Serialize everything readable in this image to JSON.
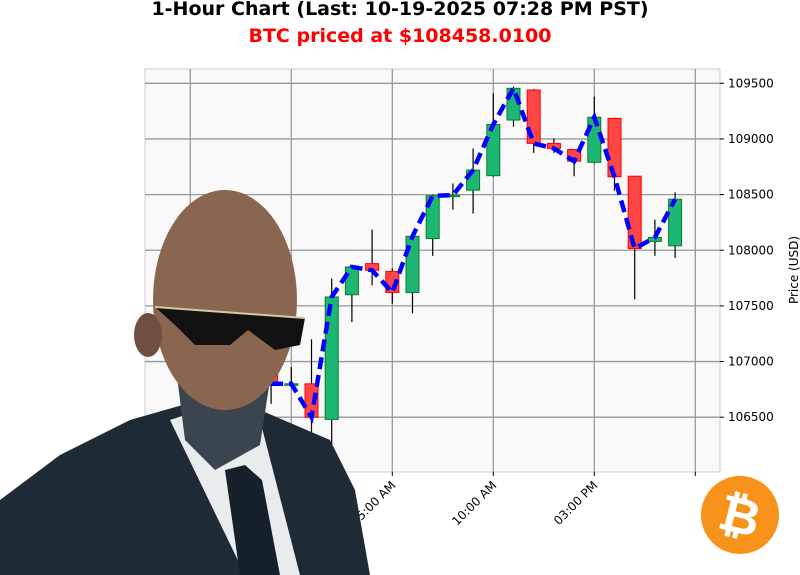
{
  "header": {
    "title": "1-Hour Chart (Last: 10-19-2025 07:28 PM PST)",
    "subtitle": "BTC priced at $108458.0100",
    "subtitle_color": "#ff0000"
  },
  "chart_data": {
    "type": "candlestick",
    "title": "1-Hour Chart (Last: 10-19-2025 07:28 PM PST)",
    "xlabel": "",
    "ylabel": "Price (USD)",
    "ylim": [
      106000,
      109650
    ],
    "xlim_hours": [
      -7.3,
      21.2
    ],
    "grid": true,
    "y_ticks": [
      "106500",
      "107000",
      "107500",
      "108000",
      "108500",
      "109000",
      "109500"
    ],
    "x_ticks": [
      {
        "hour": 5,
        "label": "05:00 AM"
      },
      {
        "hour": 10,
        "label": "10:00 AM"
      },
      {
        "hour": 15,
        "label": "03:00 PM"
      },
      {
        "hour": 20,
        "label": ""
      }
    ],
    "colors": {
      "up": "#1cb873",
      "up_edge": "#0b7a2a",
      "down": "#ff4646",
      "down_edge": "#ff0000",
      "close_line": "#0000ff"
    },
    "candles": [
      {
        "hour": -1,
        "open": 106900,
        "close": 106800,
        "high": 106950,
        "low": 106620
      },
      {
        "hour": 0,
        "open": 106790,
        "close": 106800,
        "high": 106950,
        "low": 106780
      },
      {
        "hour": 1,
        "open": 106800,
        "close": 106500,
        "high": 107200,
        "low": 106320
      },
      {
        "hour": 2,
        "open": 106480,
        "close": 107580,
        "high": 107745,
        "low": 106170
      },
      {
        "hour": 3,
        "open": 107600,
        "close": 107850,
        "high": 107860,
        "low": 107355
      },
      {
        "hour": 4,
        "open": 107880,
        "close": 107820,
        "high": 108185,
        "low": 107685
      },
      {
        "hour": 5,
        "open": 107810,
        "close": 107620,
        "high": 107835,
        "low": 107520
      },
      {
        "hour": 6,
        "open": 107620,
        "close": 108125,
        "high": 108140,
        "low": 107435
      },
      {
        "hour": 7,
        "open": 108105,
        "close": 108490,
        "high": 108500,
        "low": 107950
      },
      {
        "hour": 8,
        "open": 108490,
        "close": 108495,
        "high": 108600,
        "low": 108365
      },
      {
        "hour": 9,
        "open": 108540,
        "close": 108720,
        "high": 108915,
        "low": 108330
      },
      {
        "hour": 10,
        "open": 108670,
        "close": 109130,
        "high": 109410,
        "low": 108660
      },
      {
        "hour": 11,
        "open": 109170,
        "close": 109455,
        "high": 109470,
        "low": 109110
      },
      {
        "hour": 12,
        "open": 109440,
        "close": 108960,
        "high": 109450,
        "low": 108875
      },
      {
        "hour": 13,
        "open": 108960,
        "close": 108915,
        "high": 109005,
        "low": 108875
      },
      {
        "hour": 14,
        "open": 108905,
        "close": 108800,
        "high": 108910,
        "low": 108665
      },
      {
        "hour": 15,
        "open": 108790,
        "close": 109195,
        "high": 109380,
        "low": 108780
      },
      {
        "hour": 16,
        "open": 109185,
        "close": 108660,
        "high": 109190,
        "low": 108535
      },
      {
        "hour": 17,
        "open": 108665,
        "close": 108015,
        "high": 108670,
        "low": 107560
      },
      {
        "hour": 18,
        "open": 108080,
        "close": 108115,
        "high": 108275,
        "low": 107950
      },
      {
        "hour": 19,
        "open": 108040,
        "close": 108458,
        "high": 108520,
        "low": 107930
      }
    ]
  },
  "decor": {
    "character": "bald-man-sunglasses-suit",
    "logo": "bitcoin-logo",
    "logo_color": "#f7931a"
  }
}
